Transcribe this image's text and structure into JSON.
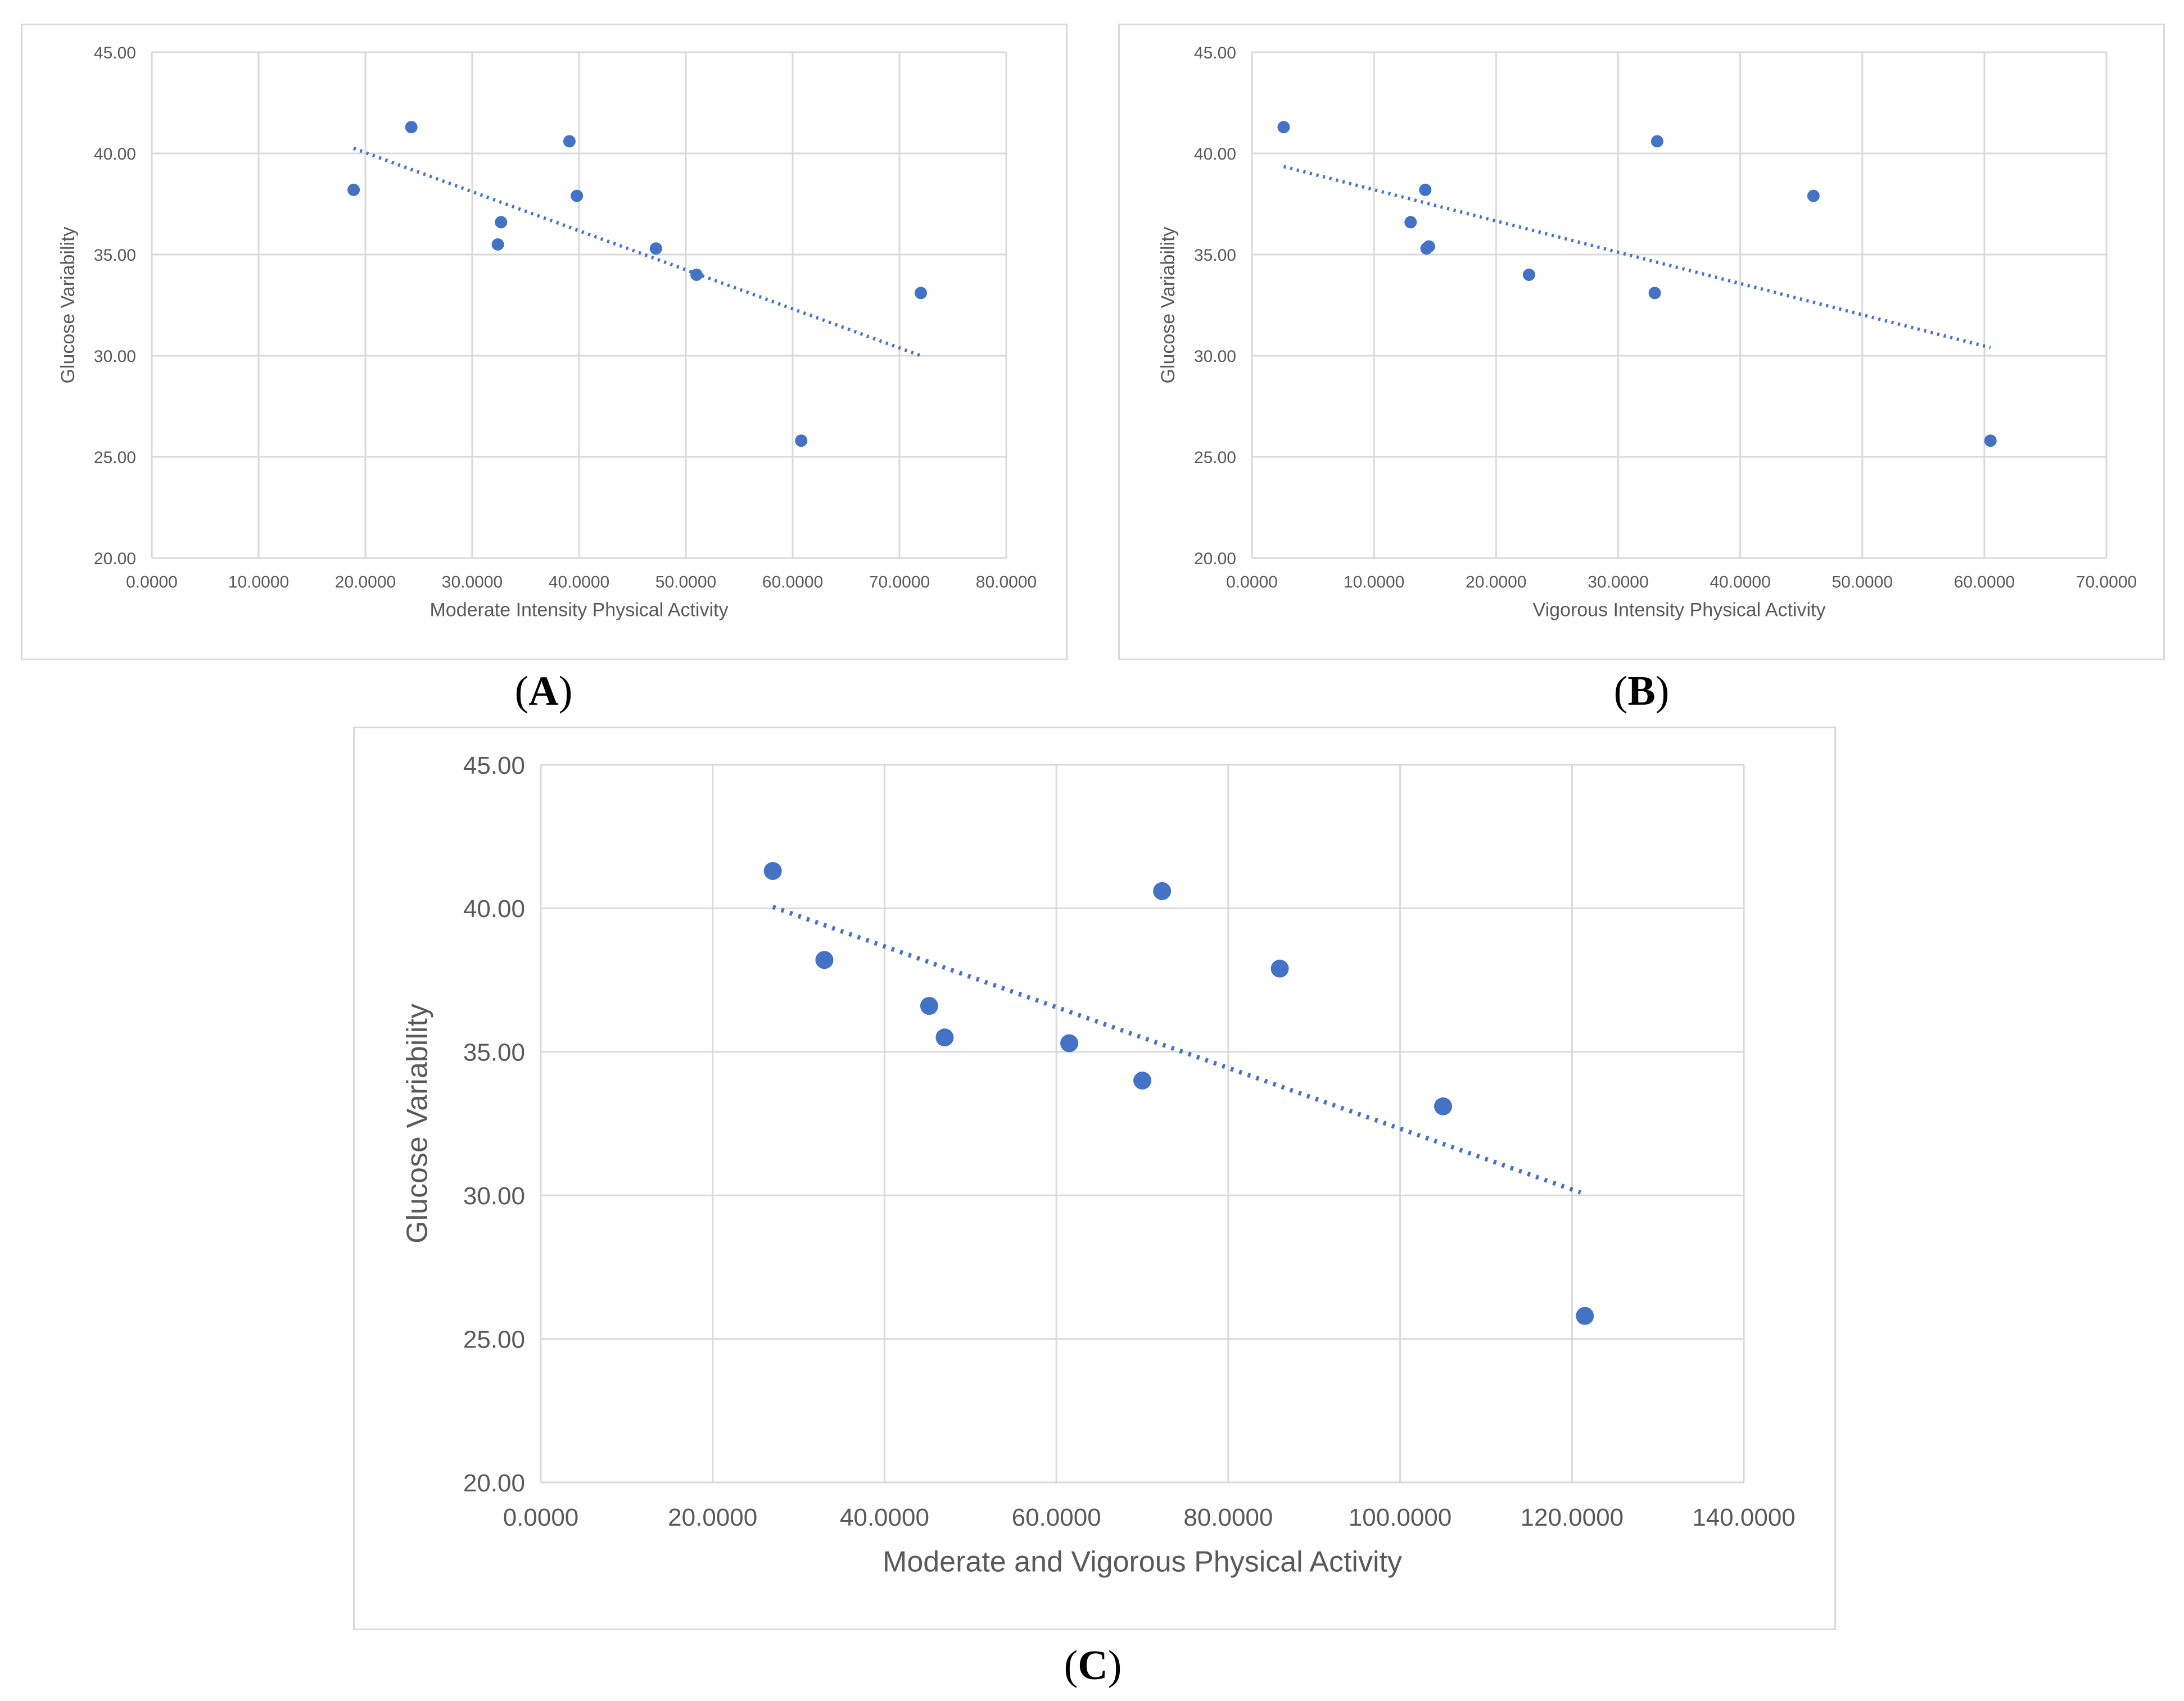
{
  "colors": {
    "point": "#4472c4",
    "trend": "#4472c4",
    "grid": "#d9d9d9",
    "text": "#595959"
  },
  "captions": {
    "a": "A",
    "b": "B",
    "c": "C"
  },
  "chart_data": [
    {
      "id": "a",
      "type": "scatter",
      "title": "",
      "xlabel": "Moderate Intensity Physical Activity",
      "ylabel": "Glucose Variability",
      "xlim": [
        0,
        80
      ],
      "ylim": [
        20,
        45
      ],
      "x_ticks": [
        0,
        10,
        20,
        30,
        40,
        50,
        60,
        70,
        80
      ],
      "y_ticks": [
        20,
        25,
        30,
        35,
        40,
        45
      ],
      "x_tick_labels": [
        "0.0000",
        "10.0000",
        "20.0000",
        "30.0000",
        "40.0000",
        "50.0000",
        "60.0000",
        "70.0000",
        "80.0000"
      ],
      "y_tick_labels": [
        "20.00",
        "25.00",
        "30.00",
        "35.00",
        "40.00",
        "45.00"
      ],
      "points": [
        [
          18.9,
          38.2
        ],
        [
          24.3,
          41.3
        ],
        [
          32.4,
          35.5
        ],
        [
          32.7,
          36.6
        ],
        [
          39.1,
          40.6
        ],
        [
          39.8,
          37.9
        ],
        [
          47.2,
          35.3
        ],
        [
          51.0,
          34.0
        ],
        [
          60.8,
          25.8
        ],
        [
          72.0,
          33.1
        ]
      ],
      "trendline": {
        "style": "dotted",
        "x": [
          18.9,
          72.0
        ],
        "y": [
          40.25,
          30.0
        ]
      }
    },
    {
      "id": "b",
      "type": "scatter",
      "title": "",
      "xlabel": "Vigorous Intensity Physical Activity",
      "ylabel": "Glucose Variability",
      "xlim": [
        0,
        70
      ],
      "ylim": [
        20,
        45
      ],
      "x_ticks": [
        0,
        10,
        20,
        30,
        40,
        50,
        60,
        70
      ],
      "y_ticks": [
        20,
        25,
        30,
        35,
        40,
        45
      ],
      "x_tick_labels": [
        "0.0000",
        "10.0000",
        "20.0000",
        "30.0000",
        "40.0000",
        "50.0000",
        "60.0000",
        "70.0000"
      ],
      "y_tick_labels": [
        "20.00",
        "25.00",
        "30.00",
        "35.00",
        "40.00",
        "45.00"
      ],
      "points": [
        [
          2.6,
          41.3
        ],
        [
          13.0,
          36.6
        ],
        [
          14.2,
          38.2
        ],
        [
          14.3,
          35.3
        ],
        [
          14.5,
          35.4
        ],
        [
          22.7,
          34.0
        ],
        [
          33.0,
          33.1
        ],
        [
          33.2,
          40.6
        ],
        [
          46.0,
          37.9
        ],
        [
          60.5,
          25.8
        ]
      ],
      "trendline": {
        "style": "dotted",
        "x": [
          2.6,
          60.5
        ],
        "y": [
          39.35,
          30.4
        ]
      }
    },
    {
      "id": "c",
      "type": "scatter",
      "title": "",
      "xlabel": "Moderate and Vigorous Physical Activity",
      "ylabel": "Glucose Variability",
      "xlim": [
        0,
        140
      ],
      "ylim": [
        20,
        45
      ],
      "x_ticks": [
        0,
        20,
        40,
        60,
        80,
        100,
        120,
        140
      ],
      "y_ticks": [
        20,
        25,
        30,
        35,
        40,
        45
      ],
      "x_tick_labels": [
        "0.0000",
        "20.0000",
        "40.0000",
        "60.0000",
        "80.0000",
        "100.0000",
        "120.0000",
        "140.0000"
      ],
      "y_tick_labels": [
        "20.00",
        "25.00",
        "30.00",
        "35.00",
        "40.00",
        "45.00"
      ],
      "points": [
        [
          27.0,
          41.3
        ],
        [
          33.0,
          38.2
        ],
        [
          45.2,
          36.6
        ],
        [
          47.0,
          35.5
        ],
        [
          61.5,
          35.3
        ],
        [
          70.0,
          34.0
        ],
        [
          72.3,
          40.6
        ],
        [
          86.0,
          37.9
        ],
        [
          105.0,
          33.1
        ],
        [
          121.5,
          25.8
        ]
      ],
      "trendline": {
        "style": "dotted",
        "x": [
          27.0,
          121.0
        ],
        "y": [
          40.05,
          30.1
        ]
      }
    }
  ]
}
